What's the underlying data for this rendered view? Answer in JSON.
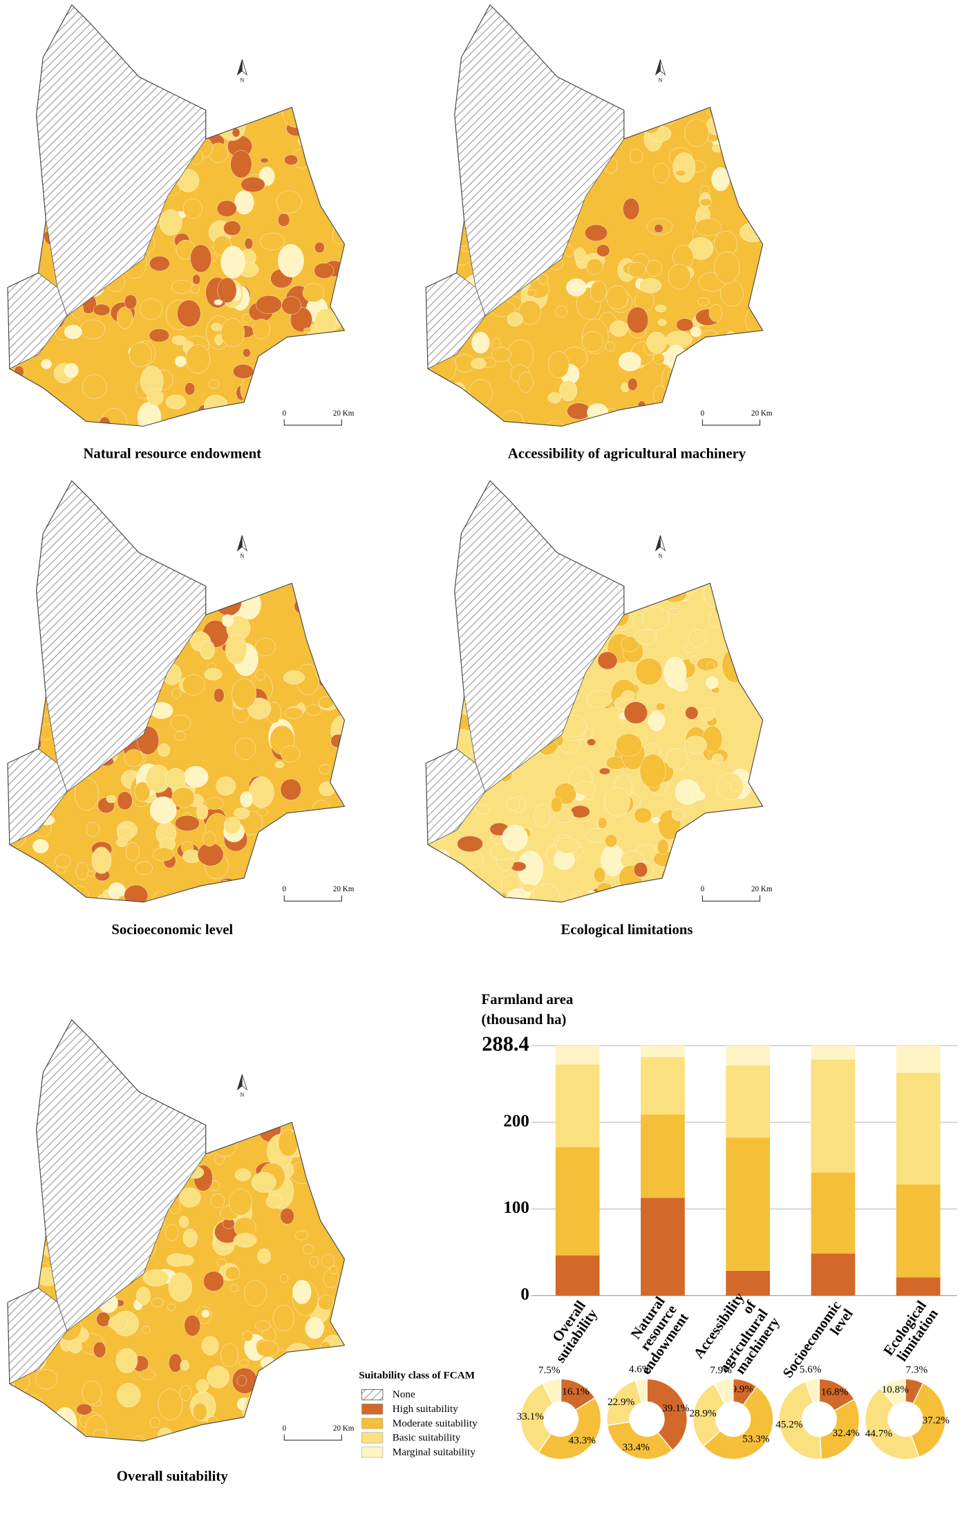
{
  "maps": [
    {
      "title": "Natural resource endowment",
      "north": "N",
      "scale": [
        "0",
        "20 Km"
      ]
    },
    {
      "title": "Accessibility of agricultural machinery",
      "north": "N",
      "scale": [
        "0",
        "20 Km"
      ]
    },
    {
      "title": "Socioeconomic level",
      "north": "N",
      "scale": [
        "0",
        "20 Km"
      ]
    },
    {
      "title": "Ecological limitations",
      "north": "N",
      "scale": [
        "0",
        "20 Km"
      ]
    },
    {
      "title": "Overall suitability",
      "north": "N",
      "scale": [
        "0",
        "20 Km"
      ]
    }
  ],
  "legend": {
    "title": "Suitability class of FCAM",
    "none_label": "None"
  },
  "chart_data": [
    {
      "type": "bar",
      "stacked": true,
      "ylabel": [
        "Farmland area",
        "(thousand ha)"
      ],
      "categories": [
        "Overall suitability",
        "Natural resource endowment",
        "Accessibility of agricultural machinery",
        "Socioeconomic level",
        "Ecological limitation"
      ],
      "series": [
        {
          "name": "High suitability",
          "color": "#d2692a",
          "values": [
            46.4,
            112.8,
            28.6,
            48.5,
            21.1
          ]
        },
        {
          "name": "Moderate suitability",
          "color": "#f5bf3a",
          "values": [
            124.9,
            96.3,
            153.7,
            93.4,
            107.3
          ]
        },
        {
          "name": "Basic suitability",
          "color": "#fbe07f",
          "values": [
            95.5,
            66.0,
            83.3,
            130.4,
            128.9
          ]
        },
        {
          "name": "Marginal suitability",
          "color": "#fff5c4",
          "values": [
            21.6,
            13.3,
            22.8,
            16.1,
            31.1
          ]
        }
      ],
      "ylim": [
        0,
        288.4
      ],
      "yticks": [
        0,
        100,
        200,
        288.4
      ],
      "grid": true
    },
    {
      "type": "pie",
      "donut": true,
      "values": [
        16.1,
        43.3,
        33.1,
        7.5
      ],
      "value_labels": [
        "16.1%",
        "43.3%",
        "33.1%",
        "7.5%"
      ]
    },
    {
      "type": "pie",
      "donut": true,
      "values": [
        39.1,
        33.4,
        22.9,
        4.6
      ],
      "value_labels": [
        "39.1%",
        "33.4%",
        "22.9%",
        "4.6%"
      ]
    },
    {
      "type": "pie",
      "donut": true,
      "values": [
        9.9,
        53.3,
        28.9,
        7.9
      ],
      "value_labels": [
        "9.9%",
        "53.3%",
        "28.9%",
        "7.9%"
      ]
    },
    {
      "type": "pie",
      "donut": true,
      "values": [
        16.8,
        32.4,
        45.2,
        5.6
      ],
      "value_labels": [
        "16.8%",
        "32.4%",
        "45.2%",
        "5.6%"
      ]
    },
    {
      "type": "pie",
      "donut": true,
      "values": [
        7.3,
        37.2,
        44.7,
        10.8
      ],
      "value_labels": [
        "7.3%",
        "37.2%",
        "44.7%",
        "10.8%"
      ]
    }
  ]
}
